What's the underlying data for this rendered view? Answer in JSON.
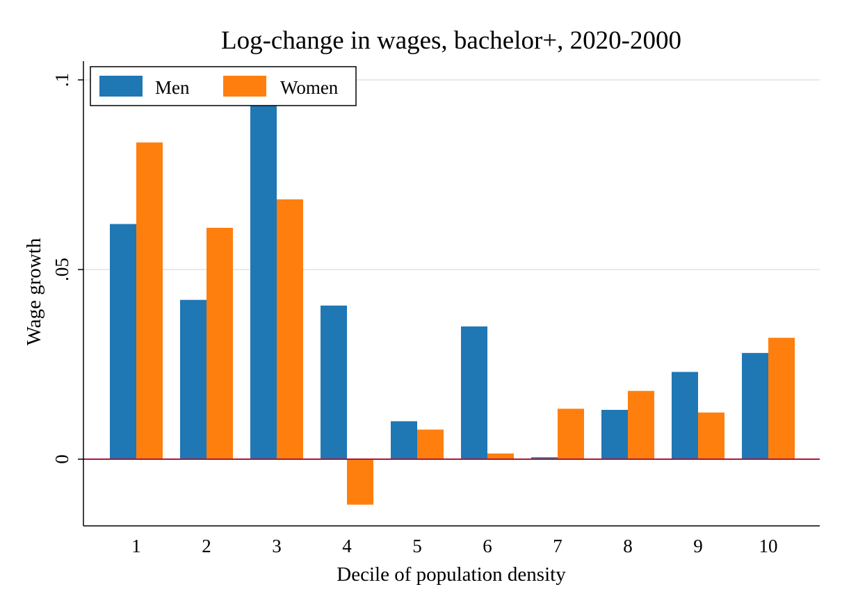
{
  "chart_data": {
    "type": "bar",
    "title": "Log-change in wages, bachelor+, 2020-2000",
    "xlabel": "Decile of population density",
    "ylabel": "Wage growth",
    "categories": [
      "1",
      "2",
      "3",
      "4",
      "5",
      "6",
      "7",
      "8",
      "9",
      "10"
    ],
    "series": [
      {
        "name": "Men",
        "color": "#1f77b4",
        "values": [
          0.062,
          0.042,
          0.094,
          0.0405,
          0.01,
          0.035,
          0.0005,
          0.013,
          0.023,
          0.028
        ]
      },
      {
        "name": "Women",
        "color": "#ff7f0e",
        "values": [
          0.0835,
          0.061,
          0.0685,
          -0.012,
          0.0078,
          0.0015,
          0.0133,
          0.018,
          0.0123,
          0.032
        ]
      }
    ],
    "y_ticks": [
      0,
      0.05,
      0.1
    ],
    "y_tick_labels": [
      "0",
      ".05",
      ".1"
    ],
    "ylim": [
      -0.0175,
      0.1045
    ],
    "gridlines": true,
    "zero_line_color": "#b0143c",
    "legend_position": "top-left"
  }
}
